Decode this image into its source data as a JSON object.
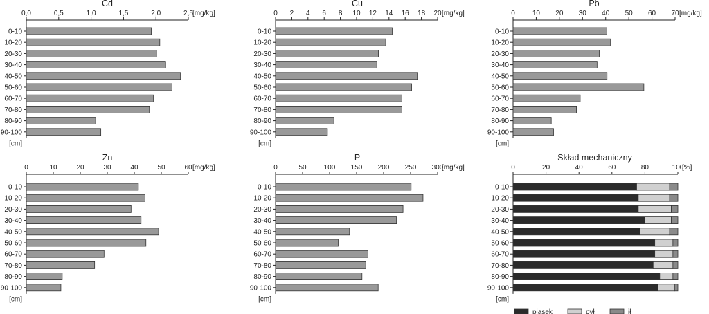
{
  "chart_data": [
    {
      "type": "bar",
      "title": "Cd",
      "unit": "[mg/kg]",
      "depth_unit": "[cm]",
      "categories": [
        "0-10",
        "10-20",
        "20-30",
        "30-40",
        "40-50",
        "50-60",
        "60-70",
        "70-80",
        "80-90",
        "90-100"
      ],
      "values": [
        1.93,
        2.06,
        2.01,
        2.15,
        2.38,
        2.25,
        1.96,
        1.9,
        1.07,
        1.15
      ],
      "xlim": [
        0,
        2.5
      ],
      "ticks": [
        0,
        0.5,
        1,
        1.5,
        2,
        2.5
      ],
      "tick_labels": [
        "0,0",
        "0,5",
        "1,0",
        "1,5",
        "2,0",
        "2,5"
      ],
      "bar_color": "#999999"
    },
    {
      "type": "bar",
      "title": "Cu",
      "unit": "[mg/kg]",
      "depth_unit": "[cm]",
      "categories": [
        "0-10",
        "10-20",
        "20-30",
        "30-40",
        "40-50",
        "50-60",
        "60-70",
        "70-80",
        "80-90",
        "90-100"
      ],
      "values": [
        14.4,
        13.6,
        12.7,
        12.5,
        17.5,
        16.8,
        15.6,
        15.6,
        7.2,
        6.4
      ],
      "xlim": [
        0,
        20
      ],
      "ticks": [
        0,
        2,
        4,
        6,
        8,
        10,
        12,
        14,
        16,
        18,
        20
      ],
      "tick_labels": [
        "0",
        "2",
        "4",
        "6",
        "8",
        "10",
        "12",
        "14",
        "16",
        "18",
        "20"
      ],
      "bar_color": "#999999"
    },
    {
      "type": "bar",
      "title": "Pb",
      "unit": "[mg/kg]",
      "depth_unit": "[cm]",
      "categories": [
        "0-10",
        "10-20",
        "20-30",
        "30-40",
        "40-50",
        "50-60",
        "60-70",
        "70-80",
        "80-90",
        "90-100"
      ],
      "values": [
        40.5,
        42,
        37.3,
        36.3,
        40.6,
        56.5,
        29,
        27.4,
        16.5,
        17.5
      ],
      "xlim": [
        0,
        70
      ],
      "ticks": [
        0,
        10,
        20,
        30,
        40,
        50,
        60,
        70
      ],
      "tick_labels": [
        "0",
        "10",
        "20",
        "30",
        "40",
        "50",
        "60",
        "70"
      ],
      "bar_color": "#999999"
    },
    {
      "type": "bar",
      "title": "Zn",
      "unit": "[mg/kg]",
      "depth_unit": "[cm]",
      "categories": [
        "0-10",
        "10-20",
        "20-30",
        "30-40",
        "40-50",
        "50-60",
        "60-70",
        "70-80",
        "80-90",
        "90-100"
      ],
      "values": [
        41.5,
        44,
        38.8,
        42.5,
        49,
        44.3,
        28.8,
        25.3,
        13.3,
        12.8
      ],
      "xlim": [
        0,
        60
      ],
      "ticks": [
        0,
        10,
        20,
        30,
        40,
        50,
        60
      ],
      "tick_labels": [
        "0",
        "10",
        "20",
        "30",
        "40",
        "50",
        "60"
      ],
      "bar_color": "#999999"
    },
    {
      "type": "bar",
      "title": "P",
      "unit": "[mg/kg]",
      "depth_unit": "[cm]",
      "categories": [
        "0-10",
        "10-20",
        "20-30",
        "30-40",
        "40-50",
        "50-60",
        "60-70",
        "70-80",
        "80-90",
        "90-100"
      ],
      "values": [
        251,
        273,
        236,
        224,
        137,
        116,
        171,
        167,
        160,
        190
      ],
      "xlim": [
        0,
        300
      ],
      "ticks": [
        0,
        50,
        100,
        150,
        200,
        250,
        300
      ],
      "tick_labels": [
        "0",
        "50",
        "100",
        "150",
        "200",
        "250",
        "300"
      ],
      "bar_color": "#999999"
    },
    {
      "type": "bar",
      "stacked": true,
      "title": "Skład mechaniczny",
      "unit": "[%]",
      "depth_unit": "[cm]",
      "categories": [
        "0-10",
        "10-20",
        "20-30",
        "30-40",
        "40-50",
        "50-60",
        "60-70",
        "70-80",
        "80-90",
        "90-100"
      ],
      "series": [
        {
          "name": "piasek",
          "values": [
            75,
            76,
            76,
            80,
            77,
            86,
            86,
            85,
            89,
            88
          ],
          "color": "#2b2b2b"
        },
        {
          "name": "pył",
          "values": [
            20,
            19,
            20,
            16,
            18,
            11,
            11,
            12,
            8,
            10
          ],
          "color": "#d0d0d0"
        },
        {
          "name": "ił",
          "values": [
            5,
            5,
            4,
            4,
            5,
            3,
            3,
            3,
            3,
            2
          ],
          "color": "#8a8a8a"
        }
      ],
      "xlim": [
        0,
        100
      ],
      "ticks": [
        0,
        20,
        40,
        60,
        80,
        100
      ],
      "tick_labels": [
        "0",
        "20",
        "40",
        "60",
        "80",
        "100"
      ]
    }
  ]
}
